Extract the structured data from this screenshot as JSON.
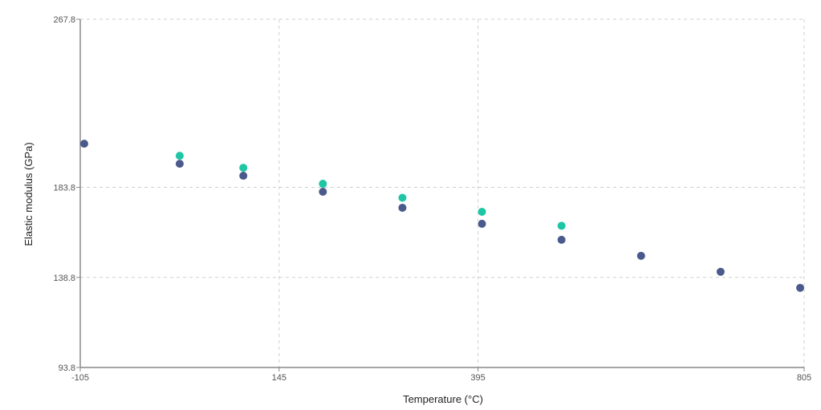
{
  "chart_data": {
    "type": "scatter",
    "title": "",
    "xlabel": "Temperature (°C)",
    "ylabel": "Elastic modulus (GPa)",
    "xlim": [
      -105,
      805
    ],
    "ylim": [
      93.8,
      267.8
    ],
    "x_ticks": [
      -105,
      145,
      395,
      805
    ],
    "y_ticks": [
      93.8,
      138.8,
      183.8,
      267.8
    ],
    "grid": true,
    "legend": "none",
    "series": [
      {
        "color": "#4a5a8c",
        "points": [
          {
            "x": -100,
            "y": 205.6
          },
          {
            "x": 20,
            "y": 195.6
          },
          {
            "x": 100,
            "y": 189.6
          },
          {
            "x": 200,
            "y": 181.6
          },
          {
            "x": 300,
            "y": 173.6
          },
          {
            "x": 400,
            "y": 165.6
          },
          {
            "x": 500,
            "y": 157.6
          },
          {
            "x": 600,
            "y": 149.6
          },
          {
            "x": 700,
            "y": 141.6
          },
          {
            "x": 800,
            "y": 133.6
          }
        ]
      },
      {
        "color": "#1ec6a6",
        "points": [
          {
            "x": 20,
            "y": 199.6
          },
          {
            "x": 100,
            "y": 193.6
          },
          {
            "x": 200,
            "y": 185.6
          },
          {
            "x": 300,
            "y": 178.6
          },
          {
            "x": 400,
            "y": 171.6
          },
          {
            "x": 500,
            "y": 164.6
          }
        ]
      }
    ]
  }
}
